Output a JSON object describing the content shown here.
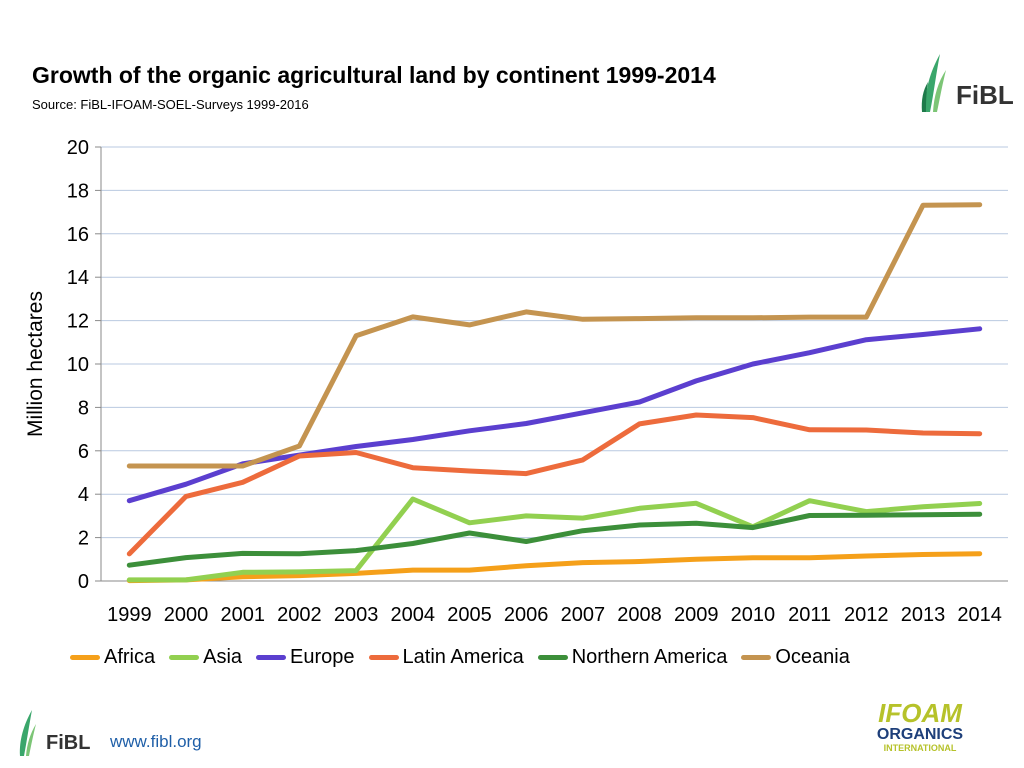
{
  "header": {
    "title": "Growth of the organic agricultural land  by continent 1999-2014",
    "subtitle": "Source: FiBL-IFOAM-SOEL-Surveys 1999-2016"
  },
  "logos": {
    "top_right": "FiBL",
    "footer": "FiBL",
    "ifoam_line1": "IFOAM",
    "ifoam_line2": "ORGANICS",
    "ifoam_line3": "INTERNATIONAL"
  },
  "footer": {
    "url": "www.fibl.org"
  },
  "chart_data": {
    "type": "line",
    "title": "Growth of the organic agricultural land  by continent 1999-2014",
    "xlabel": "",
    "ylabel": "Million hectares",
    "ylim": [
      0,
      20
    ],
    "yticks": [
      0,
      2,
      4,
      6,
      8,
      10,
      12,
      14,
      16,
      18,
      20
    ],
    "grid": true,
    "legend_position": "bottom",
    "categories": [
      "1999",
      "2000",
      "2001",
      "2002",
      "2003",
      "2004",
      "2005",
      "2006",
      "2007",
      "2008",
      "2009",
      "2010",
      "2011",
      "2012",
      "2013",
      "2014"
    ],
    "series": [
      {
        "name": "Africa",
        "color": "#f5a01a",
        "values": [
          0.02,
          0.05,
          0.2,
          0.25,
          0.35,
          0.5,
          0.5,
          0.7,
          0.85,
          0.9,
          1.0,
          1.07,
          1.07,
          1.15,
          1.22,
          1.26
        ]
      },
      {
        "name": "Asia",
        "color": "#92d050",
        "values": [
          0.05,
          0.05,
          0.4,
          0.42,
          0.48,
          3.78,
          2.68,
          3.0,
          2.9,
          3.35,
          3.58,
          2.5,
          3.7,
          3.2,
          3.42,
          3.57
        ]
      },
      {
        "name": "Europe",
        "color": "#5b3fcf",
        "values": [
          3.7,
          4.46,
          5.4,
          5.8,
          6.2,
          6.52,
          6.92,
          7.26,
          7.75,
          8.25,
          9.22,
          10.0,
          10.52,
          11.12,
          11.36,
          11.62
        ]
      },
      {
        "name": "Latin America",
        "color": "#ed6b3c",
        "values": [
          1.25,
          3.9,
          4.55,
          5.76,
          5.92,
          5.22,
          5.07,
          4.95,
          5.58,
          7.24,
          7.65,
          7.53,
          6.97,
          6.96,
          6.82,
          6.79
        ]
      },
      {
        "name": "Northern America",
        "color": "#3c8f3a",
        "values": [
          0.73,
          1.08,
          1.27,
          1.26,
          1.4,
          1.73,
          2.21,
          1.82,
          2.32,
          2.58,
          2.66,
          2.46,
          3.02,
          3.03,
          3.05,
          3.08
        ]
      },
      {
        "name": "Oceania",
        "color": "#c49450",
        "values": [
          5.3,
          5.3,
          5.3,
          6.22,
          11.3,
          12.17,
          11.8,
          12.4,
          12.06,
          12.09,
          12.13,
          12.13,
          12.16,
          12.16,
          17.32,
          17.34
        ]
      }
    ]
  }
}
